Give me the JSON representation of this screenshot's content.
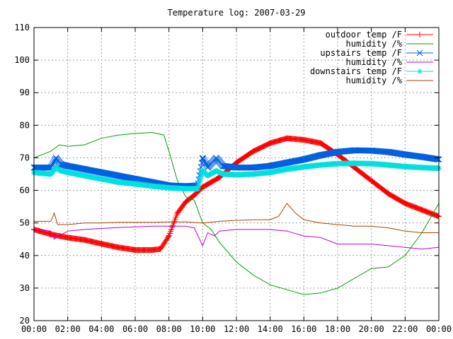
{
  "chart_data": {
    "type": "line",
    "title": "Temperature log: 2007-03-29",
    "xlabel": "",
    "ylabel": "",
    "x_unit": "hours",
    "xlim": [
      0,
      24
    ],
    "ylim": [
      20,
      110
    ],
    "xticks": [
      0,
      2,
      4,
      6,
      8,
      10,
      12,
      14,
      16,
      18,
      20,
      22,
      24
    ],
    "xtick_labels": [
      "00:00",
      "02:00",
      "04:00",
      "06:00",
      "08:00",
      "10:00",
      "12:00",
      "14:00",
      "16:00",
      "18:00",
      "20:00",
      "22:00",
      "00:00"
    ],
    "yticks": [
      20,
      30,
      40,
      50,
      60,
      70,
      80,
      90,
      100,
      110
    ],
    "ytick_labels": [
      "20",
      "30",
      "40",
      "50",
      "60",
      "70",
      "80",
      "90",
      "100",
      "110"
    ],
    "grid": true,
    "legend_position": "top-right",
    "series": [
      {
        "name": "outdoor temp /F",
        "color": "#ff0000",
        "marker": "plus",
        "points": [
          [
            0,
            48
          ],
          [
            1,
            46.5
          ],
          [
            2,
            45.5
          ],
          [
            3,
            44.8
          ],
          [
            4,
            43.6
          ],
          [
            5,
            42.5
          ],
          [
            6,
            41.7
          ],
          [
            7,
            41.7
          ],
          [
            7.5,
            42
          ],
          [
            8,
            46
          ],
          [
            8.5,
            53
          ],
          [
            9,
            56.5
          ],
          [
            9.5,
            58.5
          ],
          [
            10,
            61
          ],
          [
            10.5,
            62.5
          ],
          [
            11,
            64
          ],
          [
            12,
            68.5
          ],
          [
            13,
            72
          ],
          [
            14,
            74.5
          ],
          [
            15,
            76
          ],
          [
            16,
            75.5
          ],
          [
            16.5,
            75
          ],
          [
            17,
            74.5
          ],
          [
            18,
            71
          ],
          [
            19,
            67
          ],
          [
            20,
            63
          ],
          [
            21,
            59
          ],
          [
            22,
            56
          ],
          [
            23,
            54
          ],
          [
            24,
            52
          ]
        ]
      },
      {
        "name": "humidity /%",
        "color": "#00a000",
        "marker": "none",
        "points": [
          [
            0,
            70
          ],
          [
            0.5,
            71
          ],
          [
            1,
            72
          ],
          [
            1.5,
            74
          ],
          [
            2,
            73.5
          ],
          [
            3,
            74
          ],
          [
            4,
            76
          ],
          [
            5,
            77
          ],
          [
            6,
            77.5
          ],
          [
            7,
            77.8
          ],
          [
            7.7,
            77
          ],
          [
            8,
            72
          ],
          [
            8.5,
            63
          ],
          [
            9,
            58
          ],
          [
            9.5,
            57
          ],
          [
            10,
            50
          ],
          [
            10.5,
            48
          ],
          [
            11,
            44
          ],
          [
            12,
            38
          ],
          [
            13,
            34
          ],
          [
            14,
            31
          ],
          [
            15,
            29.5
          ],
          [
            16,
            28
          ],
          [
            17,
            28.5
          ],
          [
            18,
            30
          ],
          [
            19,
            33
          ],
          [
            20,
            36
          ],
          [
            21,
            36.5
          ],
          [
            22,
            40
          ],
          [
            23,
            47
          ],
          [
            24,
            56
          ]
        ]
      },
      {
        "name": "upstairs temp /F",
        "color": "#0060e0",
        "marker": "x",
        "points": [
          [
            0,
            67
          ],
          [
            1,
            67
          ],
          [
            1.3,
            70
          ],
          [
            1.6,
            68
          ],
          [
            2,
            67.5
          ],
          [
            3,
            66.5
          ],
          [
            4,
            65.5
          ],
          [
            5,
            64.5
          ],
          [
            6,
            63.5
          ],
          [
            7,
            62.5
          ],
          [
            8,
            61.5
          ],
          [
            9,
            61.3
          ],
          [
            9.7,
            61.5
          ],
          [
            10,
            70
          ],
          [
            10.3,
            67
          ],
          [
            10.8,
            70
          ],
          [
            11.2,
            67.5
          ],
          [
            12,
            67
          ],
          [
            13,
            67
          ],
          [
            14,
            67.5
          ],
          [
            15,
            68.5
          ],
          [
            16,
            69.5
          ],
          [
            17,
            70.8
          ],
          [
            18,
            71.8
          ],
          [
            19,
            72.3
          ],
          [
            20,
            72.2
          ],
          [
            21,
            71.8
          ],
          [
            22,
            71
          ],
          [
            23,
            70.3
          ],
          [
            24,
            69.5
          ]
        ]
      },
      {
        "name": "humidity /%",
        "color": "#c000c0",
        "marker": "none",
        "points": [
          [
            0,
            48
          ],
          [
            0.5,
            47.8
          ],
          [
            1,
            47.5
          ],
          [
            1.2,
            45
          ],
          [
            1.5,
            46
          ],
          [
            2,
            47.5
          ],
          [
            3,
            48
          ],
          [
            4,
            48.3
          ],
          [
            5,
            48.6
          ],
          [
            6,
            48.8
          ],
          [
            7,
            49
          ],
          [
            8,
            49
          ],
          [
            9,
            49
          ],
          [
            9.5,
            48.5
          ],
          [
            10,
            43
          ],
          [
            10.3,
            47
          ],
          [
            10.7,
            46
          ],
          [
            11,
            47.5
          ],
          [
            12,
            48
          ],
          [
            13,
            48
          ],
          [
            14,
            48
          ],
          [
            15,
            47.5
          ],
          [
            16,
            46
          ],
          [
            17,
            45.5
          ],
          [
            18,
            43.5
          ],
          [
            19,
            43.5
          ],
          [
            20,
            43.5
          ],
          [
            21,
            43
          ],
          [
            22,
            42.5
          ],
          [
            23,
            42
          ],
          [
            24,
            42.5
          ]
        ]
      },
      {
        "name": "downstairs temp /F",
        "color": "#00e0e0",
        "marker": "star",
        "points": [
          [
            0,
            65.5
          ],
          [
            1,
            65
          ],
          [
            1.3,
            67
          ],
          [
            1.6,
            66
          ],
          [
            2,
            65.5
          ],
          [
            3,
            64.5
          ],
          [
            4,
            63.5
          ],
          [
            5,
            62.5
          ],
          [
            6,
            62
          ],
          [
            7,
            61.3
          ],
          [
            8,
            60.8
          ],
          [
            9,
            60.5
          ],
          [
            9.7,
            60.5
          ],
          [
            10,
            66
          ],
          [
            10.3,
            64.5
          ],
          [
            10.8,
            66
          ],
          [
            11.2,
            65
          ],
          [
            12,
            64.8
          ],
          [
            13,
            65
          ],
          [
            14,
            65.5
          ],
          [
            15,
            66.5
          ],
          [
            16,
            67.2
          ],
          [
            17,
            67.8
          ],
          [
            18,
            68.2
          ],
          [
            19,
            68.3
          ],
          [
            20,
            68.2
          ],
          [
            21,
            67.8
          ],
          [
            22,
            67.3
          ],
          [
            23,
            67
          ],
          [
            24,
            66.8
          ]
        ]
      },
      {
        "name": "humidity /%",
        "color": "#b04000",
        "marker": "none",
        "points": [
          [
            0,
            50.5
          ],
          [
            1,
            50.5
          ],
          [
            1.2,
            53
          ],
          [
            1.4,
            49.5
          ],
          [
            2,
            49.5
          ],
          [
            3,
            50
          ],
          [
            4,
            50
          ],
          [
            5,
            50.2
          ],
          [
            6,
            50.2
          ],
          [
            7,
            50.2
          ],
          [
            8,
            50.3
          ],
          [
            9,
            50.3
          ],
          [
            10,
            50
          ],
          [
            11,
            50.5
          ],
          [
            12,
            50.8
          ],
          [
            13,
            51
          ],
          [
            14,
            51
          ],
          [
            14.5,
            52
          ],
          [
            15,
            56
          ],
          [
            15.5,
            53
          ],
          [
            16,
            51
          ],
          [
            17,
            50
          ],
          [
            18,
            49.5
          ],
          [
            19,
            49
          ],
          [
            20,
            49
          ],
          [
            21,
            48.5
          ],
          [
            22,
            47.5
          ],
          [
            23,
            47
          ],
          [
            24,
            47
          ]
        ]
      }
    ]
  }
}
